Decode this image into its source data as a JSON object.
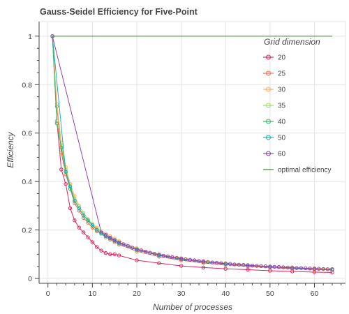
{
  "chart_data": {
    "type": "line",
    "title": "Gauss-Seidel Efficiency for Five-Point",
    "xlabel": "Number of processes",
    "ylabel": "Efficiency",
    "xlim": [
      -2,
      67
    ],
    "ylim": [
      -0.02,
      1.06
    ],
    "xticks": [
      "0",
      "10",
      "20",
      "30",
      "40",
      "50",
      "60"
    ],
    "yticks": [
      "0",
      "0.2",
      "0.4",
      "0.6",
      "0.8",
      "1"
    ],
    "grid": true,
    "legend": {
      "title": "Grid dimension",
      "placement": "top-right"
    },
    "series": [
      {
        "name": "20",
        "color": "#e0245e",
        "x": [
          1,
          2,
          3,
          4,
          5,
          6,
          7,
          8,
          9,
          10,
          11,
          12,
          13,
          14,
          15,
          16,
          20,
          25,
          30,
          35,
          40,
          45,
          50,
          55,
          60,
          64
        ],
        "y": [
          1.0,
          0.65,
          0.45,
          0.39,
          0.29,
          0.24,
          0.21,
          0.19,
          0.17,
          0.15,
          0.13,
          0.115,
          0.105,
          0.1,
          0.1,
          0.095,
          0.075,
          0.063,
          0.052,
          0.045,
          0.04,
          0.036,
          0.032,
          0.029,
          0.026,
          0.025
        ]
      },
      {
        "name": "25",
        "color": "#f46d43",
        "x": [
          1,
          2,
          3,
          4,
          5,
          6,
          7,
          8,
          9,
          10,
          11,
          12,
          13,
          14,
          15,
          16,
          20,
          25,
          30,
          35,
          40,
          45,
          50,
          55,
          60,
          64
        ],
        "y": [
          1.0,
          0.71,
          0.52,
          0.43,
          0.37,
          0.31,
          0.28,
          0.25,
          0.23,
          0.21,
          0.195,
          0.185,
          0.17,
          0.16,
          0.15,
          0.14,
          0.112,
          0.09,
          0.075,
          0.064,
          0.056,
          0.05,
          0.045,
          0.04,
          0.037,
          0.035
        ]
      },
      {
        "name": "30",
        "color": "#fdae61",
        "x": [
          1,
          2,
          3,
          4,
          5,
          6,
          7,
          8,
          9,
          10,
          11,
          12,
          13,
          14,
          15,
          16,
          20,
          25,
          30,
          35,
          40,
          45,
          50,
          55,
          60,
          64
        ],
        "y": [
          1.0,
          0.72,
          0.56,
          0.46,
          0.39,
          0.34,
          0.3,
          0.27,
          0.245,
          0.225,
          0.21,
          0.195,
          0.185,
          0.175,
          0.165,
          0.155,
          0.125,
          0.1,
          0.084,
          0.072,
          0.063,
          0.056,
          0.05,
          0.046,
          0.042,
          0.039
        ]
      },
      {
        "name": "35",
        "color": "#a6d96a",
        "x": [
          1,
          2,
          3,
          4,
          5,
          6,
          7,
          8,
          9,
          10,
          11,
          12,
          13,
          14,
          15,
          16,
          20,
          25,
          30,
          35,
          40,
          45,
          50,
          55,
          60,
          64
        ],
        "y": [
          1.0,
          0.65,
          0.55,
          0.45,
          0.38,
          0.33,
          0.3,
          0.27,
          0.245,
          0.225,
          0.205,
          0.19,
          0.18,
          0.17,
          0.16,
          0.15,
          0.121,
          0.097,
          0.081,
          0.069,
          0.061,
          0.054,
          0.049,
          0.044,
          0.04,
          0.038
        ]
      },
      {
        "name": "40",
        "color": "#3cb371",
        "x": [
          1,
          2,
          3,
          4,
          5,
          6,
          7,
          8,
          9,
          10,
          11,
          12,
          13,
          14,
          15,
          16,
          20,
          25,
          30,
          35,
          40,
          45,
          50,
          55,
          60,
          64
        ],
        "y": [
          1.0,
          0.64,
          0.54,
          0.44,
          0.37,
          0.32,
          0.29,
          0.26,
          0.24,
          0.22,
          0.2,
          0.185,
          0.175,
          0.165,
          0.155,
          0.145,
          0.118,
          0.095,
          0.079,
          0.068,
          0.06,
          0.053,
          0.048,
          0.043,
          0.04,
          0.037
        ]
      },
      {
        "name": "50",
        "color": "#20b2aa",
        "x": [
          1,
          4,
          5,
          6,
          7,
          8,
          9,
          10,
          11,
          12,
          13,
          14,
          15,
          16,
          20,
          25,
          30,
          35,
          40,
          45,
          50,
          55,
          60,
          64
        ],
        "y": [
          1.0,
          0.44,
          0.38,
          0.32,
          0.29,
          0.26,
          0.24,
          0.22,
          0.2,
          0.185,
          0.175,
          0.165,
          0.155,
          0.145,
          0.118,
          0.095,
          0.079,
          0.068,
          0.06,
          0.053,
          0.048,
          0.043,
          0.04,
          0.037
        ]
      },
      {
        "name": "60",
        "color": "#8e44ad",
        "x": [
          1,
          12,
          13,
          14,
          15,
          16,
          17,
          18,
          19,
          20,
          21,
          22,
          23,
          24,
          25,
          26,
          27,
          28,
          29,
          30,
          31,
          32,
          33,
          34,
          35,
          36,
          37,
          38,
          39,
          40,
          41,
          42,
          43,
          44,
          45,
          46,
          47,
          48,
          49,
          50,
          51,
          52,
          53,
          54,
          55,
          56,
          57,
          58,
          59,
          60,
          61,
          62,
          63,
          64
        ],
        "y": [
          1.0,
          0.19,
          0.18,
          0.168,
          0.158,
          0.149,
          0.141,
          0.134,
          0.127,
          0.121,
          0.116,
          0.111,
          0.106,
          0.102,
          0.098,
          0.094,
          0.091,
          0.088,
          0.085,
          0.082,
          0.079,
          0.077,
          0.075,
          0.072,
          0.07,
          0.068,
          0.066,
          0.065,
          0.063,
          0.061,
          0.06,
          0.058,
          0.057,
          0.056,
          0.054,
          0.053,
          0.052,
          0.051,
          0.05,
          0.049,
          0.048,
          0.047,
          0.046,
          0.045,
          0.044,
          0.043,
          0.043,
          0.042,
          0.041,
          0.04,
          0.04,
          0.039,
          0.038,
          0.038
        ]
      },
      {
        "name": "optimal efficiency",
        "color": "#2e8b2e",
        "x": [
          1,
          64
        ],
        "y": [
          1.0,
          1.0
        ],
        "markers": false
      }
    ]
  }
}
